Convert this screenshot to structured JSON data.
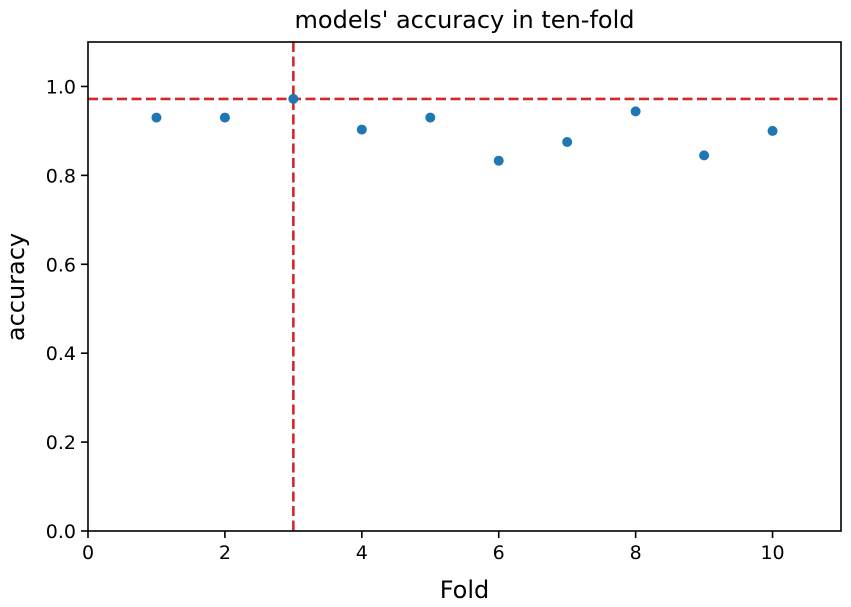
{
  "chart_data": {
    "type": "scatter",
    "title": "models' accuracy in ten-fold",
    "xlabel": "Fold",
    "ylabel": "accuracy",
    "xlim": [
      0,
      11
    ],
    "ylim": [
      0,
      1.1
    ],
    "xticks": [
      "0",
      "2",
      "4",
      "6",
      "8",
      "10"
    ],
    "yticks": [
      "0.0",
      "0.2",
      "0.4",
      "0.6",
      "0.8",
      "1.0"
    ],
    "grid": false,
    "series": [
      {
        "color": "#1f77b4",
        "x": [
          1,
          2,
          3,
          4,
          5,
          6,
          7,
          8,
          9,
          10
        ],
        "y": [
          0.93,
          0.93,
          0.972,
          0.903,
          0.93,
          0.833,
          0.875,
          0.944,
          0.845,
          0.9
        ]
      }
    ],
    "reference_lines": [
      {
        "orientation": "horizontal",
        "value": 0.972,
        "color": "#d62728",
        "style": "dashed"
      },
      {
        "orientation": "vertical",
        "value": 3,
        "color": "#d62728",
        "style": "dashed"
      }
    ]
  }
}
